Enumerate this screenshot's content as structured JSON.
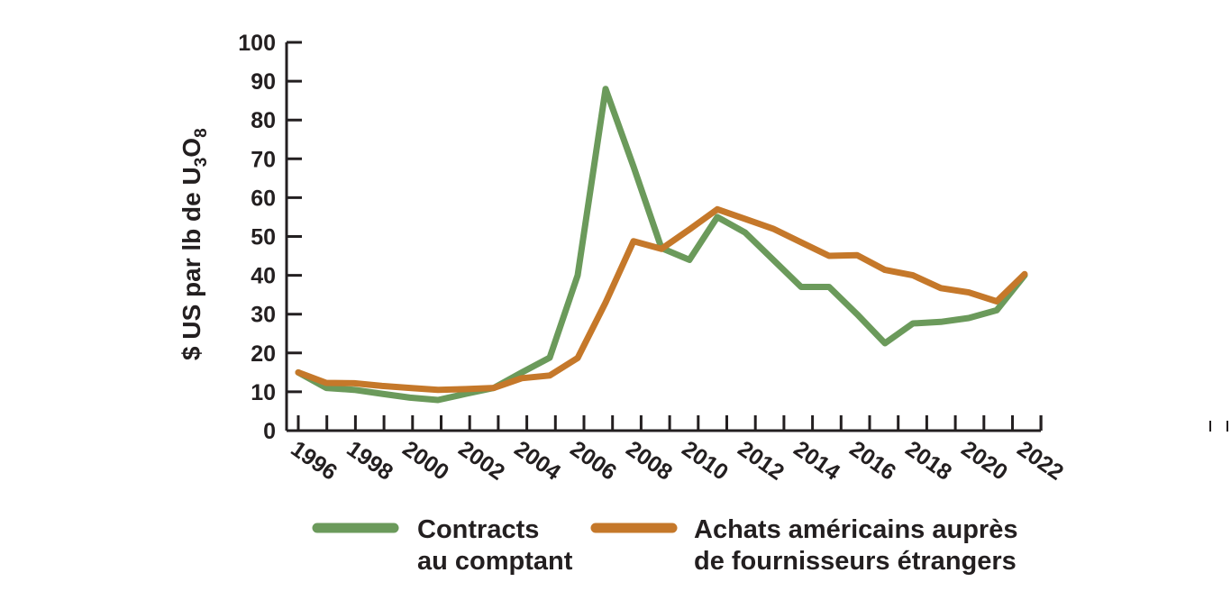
{
  "chart_data": {
    "type": "line",
    "ylabel": "$ US par lb de U3O8",
    "ylabel_main": "$ US par lb de U",
    "ylabel_sub1": "3",
    "ylabel_mid": "O",
    "ylabel_sub2": "8",
    "ylim": [
      0,
      100
    ],
    "yticks": [
      0,
      10,
      20,
      30,
      40,
      50,
      60,
      70,
      80,
      90,
      100
    ],
    "xlim": [
      1996,
      2022
    ],
    "xticks": [
      "1996",
      "1998",
      "2000",
      "2002",
      "2004",
      "2006",
      "2008",
      "2010",
      "2012",
      "2014",
      "2016",
      "2018",
      "2020",
      "2022"
    ],
    "grid": false,
    "legend_position": "bottom",
    "series": [
      {
        "name": "Contracts au comptant",
        "name_lines": [
          "Contracts",
          "au comptant"
        ],
        "color": "#6b9a5b",
        "x": [
          1996,
          1997,
          1998,
          1999,
          2000,
          2001,
          2002,
          2003,
          2004,
          2005,
          2006,
          2007,
          2008,
          2009,
          2010,
          2011,
          2012,
          2013,
          2014,
          2015,
          2016,
          2017,
          2018,
          2019,
          2020,
          2021,
          2022
        ],
        "values": [
          15,
          11,
          10.5,
          9.5,
          8.5,
          7.9,
          9.5,
          11,
          15,
          18.8,
          40,
          88,
          68,
          47,
          44,
          55,
          51,
          44,
          37,
          37,
          30,
          22.5,
          27.6,
          28,
          29,
          31,
          40
        ]
      },
      {
        "name": "Achats américains auprès de fournisseurs étrangers",
        "name_lines": [
          "Achats américains auprès",
          "de fournisseurs étrangers"
        ],
        "color": "#c5782a",
        "x": [
          1996,
          1997,
          1998,
          1999,
          2000,
          2001,
          2002,
          2003,
          2004,
          2005,
          2006,
          2007,
          2008,
          2009,
          2010,
          2011,
          2012,
          2013,
          2014,
          2015,
          2016,
          2017,
          2018,
          2019,
          2020,
          2021,
          2022
        ],
        "values": [
          15,
          12.3,
          12.2,
          11.5,
          11,
          10.5,
          10.7,
          11,
          13.5,
          14.2,
          18.7,
          33,
          48.8,
          46.8,
          51.8,
          57,
          54.5,
          52,
          48.5,
          45,
          45.2,
          41.4,
          40,
          36.7,
          35.6,
          33.3,
          40.3
        ]
      }
    ]
  }
}
